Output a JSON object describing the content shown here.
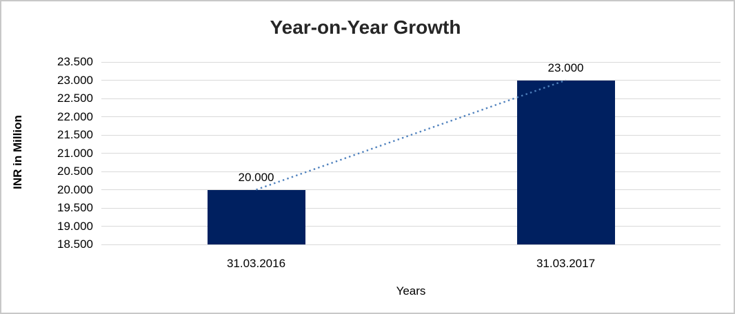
{
  "chart_data": {
    "type": "bar",
    "title": "Year-on-Year Growth",
    "xlabel": "Years",
    "ylabel": "INR in Million",
    "categories": [
      "31.03.2016",
      "31.03.2017"
    ],
    "values": [
      20.0,
      23.0
    ],
    "data_labels": [
      "20.000",
      "23.000"
    ],
    "ytick_labels": [
      "23.500",
      "23.000",
      "22.500",
      "22.000",
      "21.500",
      "21.000",
      "20.500",
      "20.000",
      "19.500",
      "19.000",
      "18.500"
    ],
    "ytick_values": [
      23.5,
      23.0,
      22.5,
      22.0,
      21.5,
      21.0,
      20.5,
      20.0,
      19.5,
      19.0,
      18.5
    ],
    "ylim": [
      18.5,
      23.5
    ],
    "grid": true,
    "legend": false,
    "bar_color": "#002060",
    "gridline_color": "#d9d9d9",
    "trendline_color": "#4f81bd",
    "trendline_style": "dotted"
  }
}
